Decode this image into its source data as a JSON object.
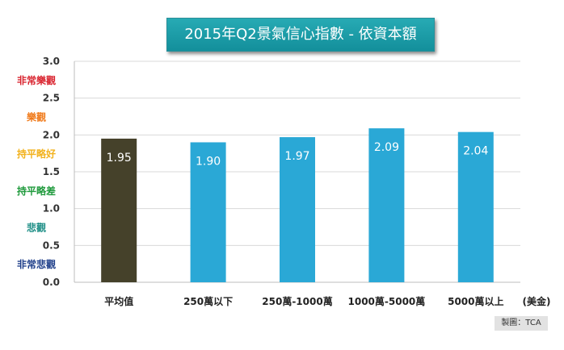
{
  "chart_data": {
    "type": "bar",
    "title": "2015年Q2景氣信心指數 - 依資本額",
    "categories": [
      "平均值",
      "250萬以下",
      "250萬-1000萬",
      "1000萬-5000萬",
      "5000萬以上"
    ],
    "values": [
      1.95,
      1.9,
      1.97,
      2.09,
      2.04
    ],
    "value_labels": [
      "1.95",
      "1.90",
      "1.97",
      "2.09",
      "2.04"
    ],
    "ylim": [
      0,
      3
    ],
    "yticks": [
      "0.0",
      "0.5",
      "1.0",
      "1.5",
      "2.0",
      "2.5",
      "3.0"
    ],
    "ytick_values": [
      0,
      0.5,
      1.0,
      1.5,
      2.0,
      2.5,
      3.0
    ],
    "grid": true,
    "xunit": "(美金)",
    "bar_colors": [
      "#45412a",
      "#2aa8d6",
      "#2aa8d6",
      "#2aa8d6",
      "#2aa8d6"
    ],
    "sentiment_labels": [
      {
        "text": "非常樂觀",
        "value": 2.75,
        "color": "#d9232e"
      },
      {
        "text": "樂觀",
        "value": 2.25,
        "color": "#f07a1a"
      },
      {
        "text": "持平略好",
        "value": 1.75,
        "color": "#f2b21d"
      },
      {
        "text": "持平略差",
        "value": 1.25,
        "color": "#1f9a3c"
      },
      {
        "text": "悲觀",
        "value": 0.75,
        "color": "#1f8f87"
      },
      {
        "text": "非常悲觀",
        "value": 0.25,
        "color": "#1f3f8a"
      }
    ]
  },
  "credit": "製圖：TCA"
}
